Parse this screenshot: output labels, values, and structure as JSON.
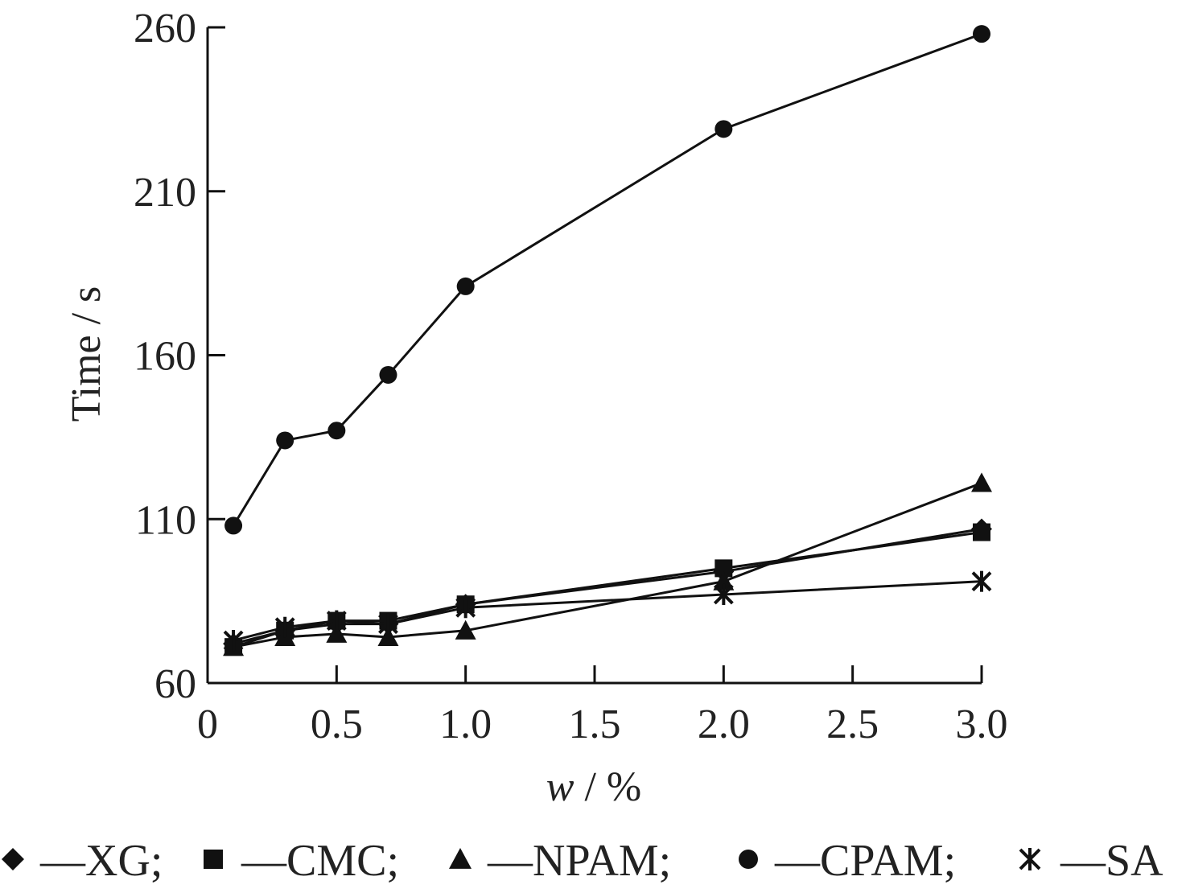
{
  "chart_data": {
    "type": "line",
    "xlabel_var": "w",
    "xlabel_unit": " / %",
    "ylabel": "Time / s",
    "xlim": [
      0,
      3.0
    ],
    "ylim": [
      60,
      260
    ],
    "xticks": [
      0,
      0.5,
      1.0,
      1.5,
      2.0,
      2.5,
      3.0
    ],
    "xtick_labels": [
      "0",
      "0.5",
      "1.0",
      "1.5",
      "2.0",
      "2.5",
      "3.0"
    ],
    "yticks": [
      60,
      110,
      160,
      210,
      260
    ],
    "ytick_labels": [
      "60",
      "110",
      "160",
      "210",
      "260"
    ],
    "grid": false,
    "legend_position": "bottom",
    "line_color": "#111111",
    "x": [
      0.1,
      0.3,
      0.5,
      0.7,
      1.0,
      2.0,
      3.0
    ],
    "series": [
      {
        "name": "XG",
        "legend_label": "—XG;",
        "marker": "diamond",
        "values": [
          72,
          76,
          78,
          78,
          84,
          94,
          107
        ]
      },
      {
        "name": "CMC",
        "legend_label": "—CMC;",
        "marker": "square",
        "values": [
          71,
          76,
          79,
          79,
          84,
          95,
          106
        ]
      },
      {
        "name": "NPAM",
        "legend_label": "—NPAM;",
        "marker": "triangle",
        "values": [
          71,
          74,
          75,
          74,
          76,
          91,
          121
        ]
      },
      {
        "name": "CPAM",
        "legend_label": "—CPAM;",
        "marker": "circle",
        "values": [
          108,
          134,
          137,
          154,
          181,
          229,
          258
        ]
      },
      {
        "name": "SA",
        "legend_label": "—SA",
        "marker": "star",
        "values": [
          73,
          77,
          79,
          78,
          83,
          87,
          91
        ]
      }
    ]
  }
}
